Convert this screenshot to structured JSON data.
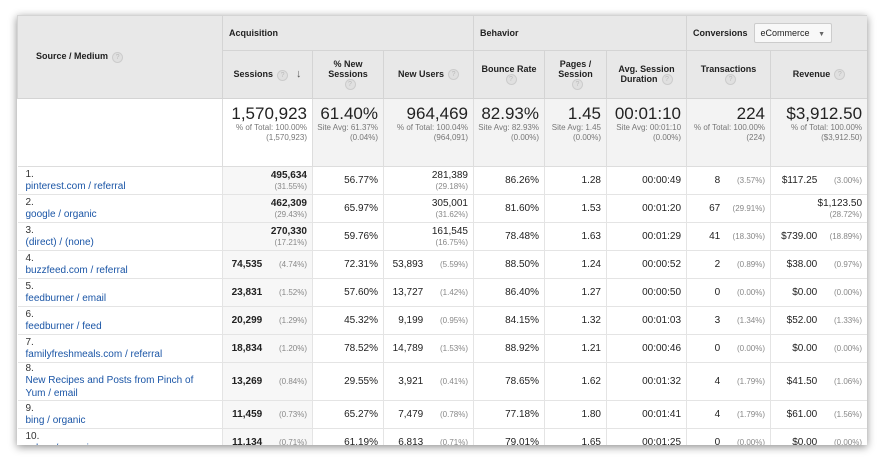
{
  "groups": {
    "acquisition": "Acquisition",
    "behavior": "Behavior",
    "conversions": "Conversions",
    "conversions_select": "eCommerce"
  },
  "columns": {
    "source": "Source / Medium",
    "sessions": "Sessions",
    "new_sessions": "% New Sessions",
    "new_users": "New Users",
    "bounce": "Bounce Rate",
    "pages": "Pages / Session",
    "duration": "Avg. Session Duration",
    "transactions": "Transactions",
    "revenue": "Revenue"
  },
  "totals": {
    "sessions": {
      "value": "1,570,923",
      "sub": "% of Total: 100.00% (1,570,923)"
    },
    "new_sessions": {
      "value": "61.40%",
      "sub": "Site Avg: 61.37% (0.04%)"
    },
    "new_users": {
      "value": "964,469",
      "sub": "% of Total: 100.04% (964,091)"
    },
    "bounce": {
      "value": "82.93%",
      "sub": "Site Avg: 82.93% (0.00%)"
    },
    "pages": {
      "value": "1.45",
      "sub": "Site Avg: 1.45 (0.00%)"
    },
    "duration": {
      "value": "00:01:10",
      "sub": "Site Avg: 00:01:10 (0.00%)"
    },
    "transactions": {
      "value": "224",
      "sub": "% of Total: 100.00% (224)"
    },
    "revenue": {
      "value": "$3,912.50",
      "sub": "% of Total: 100.00% ($3,912.50)"
    }
  },
  "rows": [
    {
      "idx": "1.",
      "source": "pinterest.com / referral",
      "sessions": "495,634",
      "sessions_pct": "(31.55%)",
      "new_sessions": "56.77%",
      "new_users": "281,389",
      "new_users_pct": "(29.18%)",
      "bounce": "86.26%",
      "pages": "1.28",
      "duration": "00:00:49",
      "transactions": "8",
      "transactions_pct": "(3.57%)",
      "revenue": "$117.25",
      "revenue_pct": "(3.00%)"
    },
    {
      "idx": "2.",
      "source": "google / organic",
      "sessions": "462,309",
      "sessions_pct": "(29.43%)",
      "new_sessions": "65.97%",
      "new_users": "305,001",
      "new_users_pct": "(31.62%)",
      "bounce": "81.60%",
      "pages": "1.53",
      "duration": "00:01:20",
      "transactions": "67",
      "transactions_pct": "(29.91%)",
      "revenue": "$1,123.50",
      "revenue_pct": "(28.72%)"
    },
    {
      "idx": "3.",
      "source": "(direct) / (none)",
      "sessions": "270,330",
      "sessions_pct": "(17.21%)",
      "new_sessions": "59.76%",
      "new_users": "161,545",
      "new_users_pct": "(16.75%)",
      "bounce": "78.48%",
      "pages": "1.63",
      "duration": "00:01:29",
      "transactions": "41",
      "transactions_pct": "(18.30%)",
      "revenue": "$739.00",
      "revenue_pct": "(18.89%)"
    },
    {
      "idx": "4.",
      "source": "buzzfeed.com / referral",
      "sessions": "74,535",
      "sessions_pct": "(4.74%)",
      "new_sessions": "72.31%",
      "new_users": "53,893",
      "new_users_pct": "(5.59%)",
      "bounce": "88.50%",
      "pages": "1.24",
      "duration": "00:00:52",
      "transactions": "2",
      "transactions_pct": "(0.89%)",
      "revenue": "$38.00",
      "revenue_pct": "(0.97%)"
    },
    {
      "idx": "5.",
      "source": "feedburner / email",
      "sessions": "23,831",
      "sessions_pct": "(1.52%)",
      "new_sessions": "57.60%",
      "new_users": "13,727",
      "new_users_pct": "(1.42%)",
      "bounce": "86.40%",
      "pages": "1.27",
      "duration": "00:00:50",
      "transactions": "0",
      "transactions_pct": "(0.00%)",
      "revenue": "$0.00",
      "revenue_pct": "(0.00%)"
    },
    {
      "idx": "6.",
      "source": "feedburner / feed",
      "sessions": "20,299",
      "sessions_pct": "(1.29%)",
      "new_sessions": "45.32%",
      "new_users": "9,199",
      "new_users_pct": "(0.95%)",
      "bounce": "84.15%",
      "pages": "1.32",
      "duration": "00:01:03",
      "transactions": "3",
      "transactions_pct": "(1.34%)",
      "revenue": "$52.00",
      "revenue_pct": "(1.33%)"
    },
    {
      "idx": "7.",
      "source": "familyfreshmeals.com / referral",
      "sessions": "18,834",
      "sessions_pct": "(1.20%)",
      "new_sessions": "78.52%",
      "new_users": "14,789",
      "new_users_pct": "(1.53%)",
      "bounce": "88.92%",
      "pages": "1.21",
      "duration": "00:00:46",
      "transactions": "0",
      "transactions_pct": "(0.00%)",
      "revenue": "$0.00",
      "revenue_pct": "(0.00%)"
    },
    {
      "idx": "8.",
      "source": "New Recipes and Posts from Pinch of Yum / email",
      "sessions": "13,269",
      "sessions_pct": "(0.84%)",
      "new_sessions": "29.55%",
      "new_users": "3,921",
      "new_users_pct": "(0.41%)",
      "bounce": "78.65%",
      "pages": "1.62",
      "duration": "00:01:32",
      "transactions": "4",
      "transactions_pct": "(1.79%)",
      "revenue": "$41.50",
      "revenue_pct": "(1.06%)"
    },
    {
      "idx": "9.",
      "source": "bing / organic",
      "sessions": "11,459",
      "sessions_pct": "(0.73%)",
      "new_sessions": "65.27%",
      "new_users": "7,479",
      "new_users_pct": "(0.78%)",
      "bounce": "77.18%",
      "pages": "1.80",
      "duration": "00:01:41",
      "transactions": "4",
      "transactions_pct": "(1.79%)",
      "revenue": "$61.00",
      "revenue_pct": "(1.56%)"
    },
    {
      "idx": "10.",
      "source": "yahoo / organic",
      "sessions": "11,134",
      "sessions_pct": "(0.71%)",
      "new_sessions": "61.19%",
      "new_users": "6,813",
      "new_users_pct": "(0.71%)",
      "bounce": "79.01%",
      "pages": "1.65",
      "duration": "00:01:25",
      "transactions": "0",
      "transactions_pct": "(0.00%)",
      "revenue": "$0.00",
      "revenue_pct": "(0.00%)"
    }
  ]
}
